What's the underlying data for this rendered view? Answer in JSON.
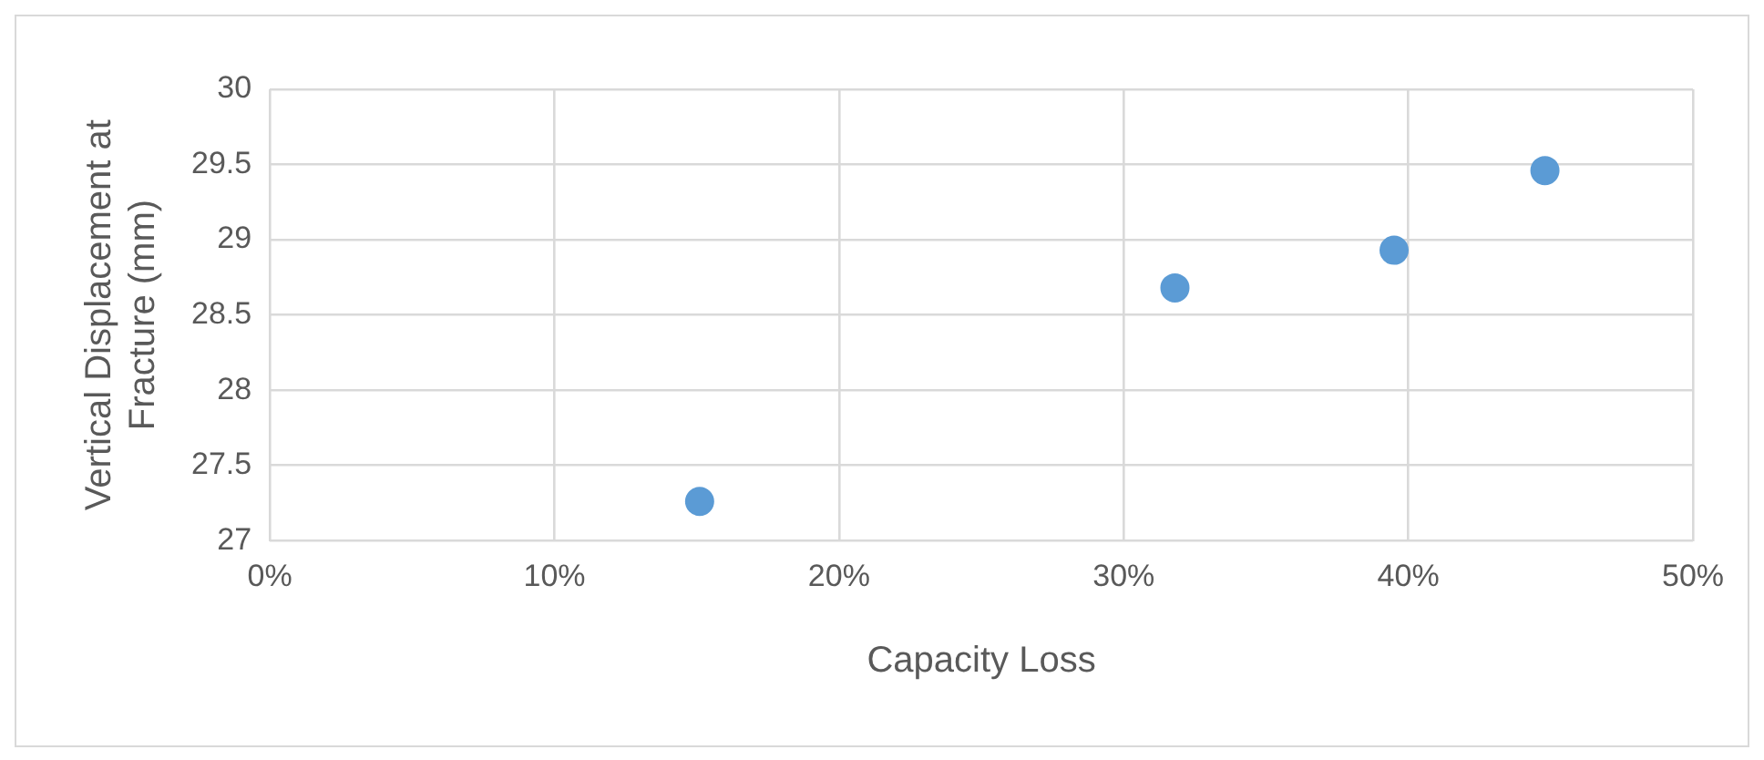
{
  "chart_data": {
    "type": "scatter",
    "xlabel": "Capacity Loss",
    "ylabel": "Vertical Displacement at Fracture (mm)",
    "x": [
      15.1,
      31.8,
      39.5,
      44.8
    ],
    "series": [
      {
        "color": "#5b9bd5",
        "values": [
          27.26,
          28.68,
          28.93,
          29.46
        ]
      }
    ],
    "xlim": [
      0,
      50
    ],
    "xticks": [
      {
        "value": 0,
        "label": "0%"
      },
      {
        "value": 10,
        "label": "10%"
      },
      {
        "value": 20,
        "label": "20%"
      },
      {
        "value": 30,
        "label": "30%"
      },
      {
        "value": 40,
        "label": "40%"
      },
      {
        "value": 50,
        "label": "50%"
      }
    ],
    "ylim": [
      27,
      30
    ],
    "yticks": [
      {
        "value": 27,
        "label": "27"
      },
      {
        "value": 27.5,
        "label": "27.5"
      },
      {
        "value": 28,
        "label": "28"
      },
      {
        "value": 28.5,
        "label": "28.5"
      },
      {
        "value": 29,
        "label": "29"
      },
      {
        "value": 29.5,
        "label": "29.5"
      },
      {
        "value": 30,
        "label": "30"
      }
    ],
    "grid": true,
    "legend": false,
    "marker": "circle"
  }
}
